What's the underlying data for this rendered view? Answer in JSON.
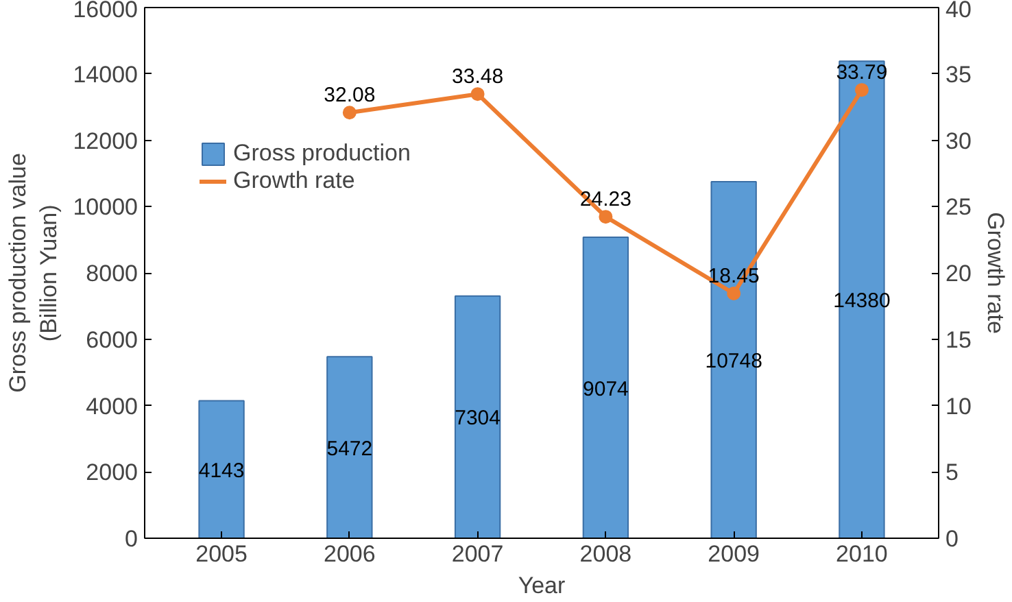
{
  "chart_data": {
    "type": "bar",
    "xlabel": "Year",
    "ylabel": "Gross production value\n(Billion Yuan)",
    "y2label": "Growth rate",
    "categories": [
      "2005",
      "2006",
      "2007",
      "2008",
      "2009",
      "2010"
    ],
    "series": [
      {
        "name": "Gross production",
        "color": "#5b9bd5",
        "values": [
          4143,
          5472,
          7304,
          9074,
          10748,
          14380
        ]
      },
      {
        "name": "Growth rate",
        "type": "line",
        "axis": "y2",
        "color": "#ed7d31",
        "marker": "circle",
        "values": [
          null,
          32.08,
          33.48,
          24.23,
          18.45,
          33.79
        ]
      }
    ],
    "ylim": [
      0,
      16000
    ],
    "yticks": [
      0,
      2000,
      4000,
      6000,
      8000,
      10000,
      12000,
      14000,
      16000
    ],
    "y2lim": [
      0,
      40
    ],
    "y2ticks": [
      0,
      5,
      10,
      15,
      20,
      25,
      30,
      35,
      40
    ],
    "data_labels": true,
    "grid": false,
    "legend": "top left"
  }
}
